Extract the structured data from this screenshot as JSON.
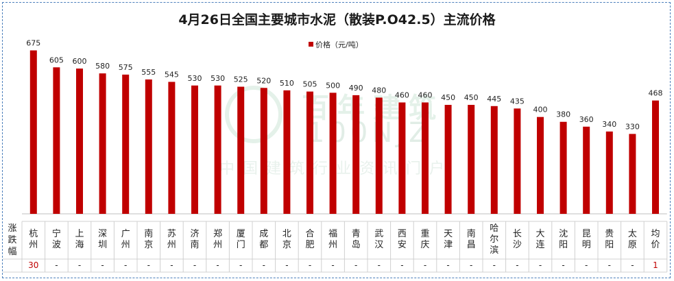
{
  "chart_data": {
    "type": "bar",
    "title": "4月26日全国主要城市水泥（散装P.O42.5）主流价格",
    "legend": "价格（元/吨）",
    "legend_position": "top-center",
    "ylim": [
      0,
      700
    ],
    "bar_color": "#c00000",
    "categories": [
      "杭州",
      "宁波",
      "上海",
      "深圳",
      "广州",
      "南京",
      "苏州",
      "济南",
      "郑州",
      "厦门",
      "成都",
      "北京",
      "合肥",
      "福州",
      "青岛",
      "武汉",
      "西安",
      "重庆",
      "天津",
      "南昌",
      "哈尔滨",
      "长沙",
      "大连",
      "沈阳",
      "昆明",
      "贵阳",
      "太原",
      "均价"
    ],
    "series": [
      {
        "name": "价格（元/吨）",
        "values": [
          675,
          605,
          600,
          580,
          575,
          555,
          545,
          530,
          530,
          525,
          520,
          510,
          505,
          500,
          490,
          480,
          460,
          460,
          450,
          450,
          445,
          435,
          400,
          380,
          360,
          340,
          330,
          468
        ]
      }
    ],
    "table": {
      "row_label": "涨跌幅",
      "changes": [
        "30",
        "-",
        "-",
        "-",
        "-",
        "-",
        "-",
        "-",
        "-",
        "-",
        "-",
        "-",
        "-",
        "-",
        "-",
        "-",
        "-",
        "-",
        "-",
        "-",
        "-",
        "-",
        "-",
        "-",
        "-",
        "-",
        "-",
        "1"
      ],
      "highlight_color": "#c00000"
    }
  },
  "watermark": {
    "name": "百年建筑",
    "latin": "100NJZ",
    "tagline": "中国建筑行业资讯门户"
  }
}
